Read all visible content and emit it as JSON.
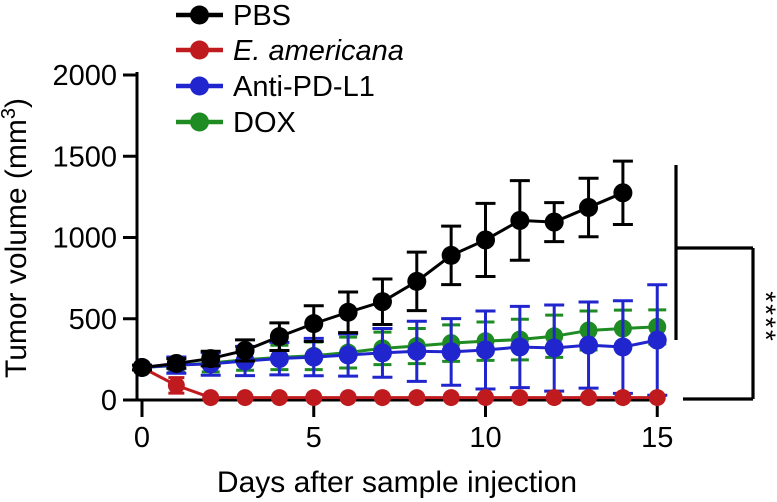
{
  "figure": {
    "kind": "scientific-line-plot",
    "background": "#ffffff"
  },
  "chart_data": {
    "type": "line",
    "title": "",
    "xlabel": "Days after sample injection",
    "ylabel": "Tumor volume (mm³)",
    "ylabel_parts": {
      "prefix": "Tumor volume (mm",
      "sup": "3",
      "suffix": ")"
    },
    "xlim": [
      0,
      15
    ],
    "ylim": [
      0,
      2000
    ],
    "x_ticks": [
      0,
      5,
      10,
      15
    ],
    "y_ticks": [
      0,
      500,
      1000,
      1500,
      2000
    ],
    "grid": false,
    "legend_position": "top-left",
    "error_bar_style": "symmetric",
    "series": [
      {
        "name": "DOX",
        "slug": "dox",
        "color": "#1f8c23",
        "italic": false,
        "x": [
          0,
          1,
          2,
          3,
          4,
          5,
          6,
          7,
          8,
          9,
          10,
          11,
          12,
          13,
          14,
          15
        ],
        "values": [
          200,
          212,
          228,
          248,
          262,
          272,
          292,
          318,
          332,
          350,
          362,
          372,
          392,
          428,
          440,
          450
        ],
        "errors": [
          0,
          40,
          55,
          65,
          75,
          85,
          95,
          100,
          108,
          112,
          118,
          125,
          130,
          120,
          113,
          105
        ]
      },
      {
        "name": "Anti-PD-L1",
        "slug": "anti-pd-l1",
        "color": "#2025cd",
        "italic": false,
        "x": [
          0,
          1,
          2,
          3,
          4,
          5,
          6,
          7,
          8,
          9,
          10,
          11,
          12,
          13,
          14,
          15
        ],
        "values": [
          200,
          215,
          222,
          240,
          255,
          264,
          277,
          290,
          300,
          296,
          308,
          326,
          320,
          338,
          326,
          369
        ],
        "errors": [
          0,
          50,
          70,
          90,
          100,
          115,
          130,
          150,
          185,
          205,
          240,
          250,
          265,
          265,
          285,
          340
        ]
      },
      {
        "name": "E. americana",
        "slug": "e-americana",
        "color": "#bf1b1e",
        "italic": true,
        "x": [
          0,
          1,
          2,
          3,
          4,
          5,
          6,
          7,
          8,
          9,
          10,
          11,
          12,
          13,
          14,
          15
        ],
        "values": [
          200,
          90,
          15,
          15,
          15,
          15,
          15,
          15,
          15,
          15,
          15,
          15,
          15,
          15,
          15,
          15
        ],
        "errors": [
          0,
          48,
          0,
          0,
          0,
          0,
          0,
          0,
          0,
          0,
          0,
          0,
          0,
          0,
          0,
          0
        ]
      },
      {
        "name": "PBS",
        "slug": "pbs",
        "color": "#000000",
        "italic": false,
        "x": [
          0,
          1,
          2,
          3,
          4,
          5,
          6,
          7,
          8,
          9,
          10,
          11,
          12,
          13,
          14
        ],
        "values": [
          200,
          225,
          255,
          305,
          390,
          470,
          540,
          605,
          730,
          890,
          985,
          1105,
          1095,
          1185,
          1275
        ],
        "errors": [
          15,
          30,
          45,
          65,
          85,
          110,
          125,
          140,
          180,
          180,
          225,
          245,
          120,
          180,
          195
        ]
      }
    ],
    "legend_order": [
      "pbs",
      "e-americana",
      "anti-pd-l1",
      "dox"
    ],
    "significance": {
      "label": "****"
    }
  }
}
